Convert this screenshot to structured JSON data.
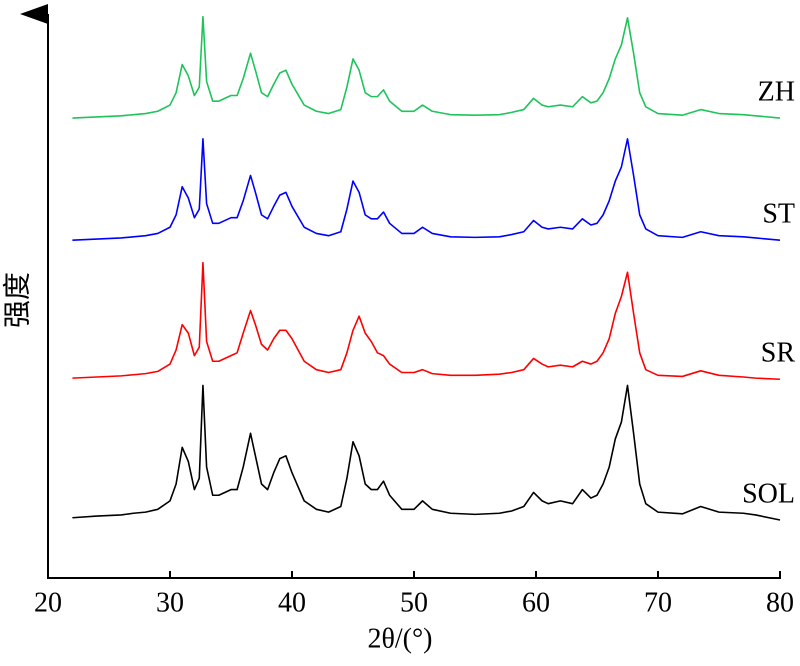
{
  "chart_data": {
    "type": "line",
    "x_label": "2θ/(°)",
    "y_label": "强度",
    "xlim": [
      20,
      80
    ],
    "xticks": [
      20,
      30,
      40,
      50,
      60,
      70,
      80
    ],
    "ylim": [
      0,
      100
    ],
    "x": [
      22,
      24,
      26,
      27,
      28,
      29,
      30,
      30.5,
      31,
      31.5,
      32,
      32.4,
      32.7,
      33,
      33.5,
      34,
      35,
      35.5,
      36,
      36.6,
      37,
      37.5,
      38,
      38.5,
      39,
      39.5,
      40,
      41,
      42,
      43,
      44,
      44.5,
      45,
      45.5,
      46,
      46.5,
      47,
      47.5,
      48,
      49,
      50,
      50.7,
      51.5,
      53,
      55,
      57,
      58,
      59,
      59.8,
      60.5,
      61,
      62,
      63,
      63.8,
      64.5,
      65,
      65.5,
      66,
      66.5,
      67,
      67.5,
      68,
      68.5,
      69,
      70,
      72,
      73.5,
      75,
      77,
      78,
      80
    ],
    "series": [
      {
        "name": "ZH",
        "color": "#1ec45a",
        "values": [
          81.7,
          81.9,
          82.1,
          82.3,
          82.5,
          82.9,
          84,
          86.2,
          91.2,
          89.2,
          85.7,
          87.2,
          99.7,
          88.2,
          84.7,
          84.7,
          85.7,
          85.7,
          88.7,
          93.2,
          90.2,
          86.2,
          85.5,
          87.7,
          89.7,
          90.2,
          87.7,
          84,
          82.9,
          82.5,
          83.2,
          87.2,
          92.2,
          90.2,
          86.2,
          85.5,
          85.5,
          86.7,
          84.7,
          82.9,
          82.9,
          84,
          82.9,
          82.3,
          82.2,
          82.3,
          82.7,
          83.2,
          85.2,
          84,
          83.7,
          84,
          83.7,
          85.5,
          84.4,
          84.7,
          86.2,
          88.7,
          92.2,
          94.7,
          99.5,
          93.2,
          86.2,
          83.7,
          82.5,
          82.2,
          83.2,
          82.5,
          82.3,
          82.1,
          81.7
        ]
      },
      {
        "name": "ST",
        "color": "#0000ff",
        "values": [
          60,
          60.2,
          60.4,
          60.6,
          60.8,
          61.2,
          62.3,
          64.5,
          69.5,
          67.5,
          64,
          65.5,
          78,
          66.5,
          63,
          63,
          64,
          64,
          67,
          71.5,
          68.5,
          64.5,
          63.8,
          66,
          68,
          68.5,
          66,
          62.3,
          61.2,
          60.8,
          61.5,
          65.5,
          70.5,
          68.5,
          64.5,
          63.8,
          63.8,
          65,
          63,
          61.2,
          61.2,
          62.3,
          61.2,
          60.6,
          60.5,
          60.6,
          61,
          61.5,
          63.5,
          62.3,
          62,
          62.3,
          62,
          63.8,
          62.7,
          63,
          64.5,
          67,
          70.5,
          73,
          78,
          71.5,
          64.5,
          62,
          60.8,
          60.5,
          61.5,
          60.8,
          60.6,
          60.4,
          60
        ]
      },
      {
        "name": "SR",
        "color": "#ff0000",
        "values": [
          35.5,
          35.7,
          35.9,
          36.1,
          36.3,
          36.7,
          38,
          40.5,
          45,
          43.5,
          39.5,
          41,
          56,
          42,
          38.5,
          38.5,
          39.5,
          40,
          43.5,
          47.5,
          45,
          41.5,
          40.5,
          42.5,
          44,
          44,
          42.5,
          38.5,
          37,
          36.5,
          37,
          40,
          44,
          46.5,
          43.5,
          42,
          40,
          39.5,
          38,
          36.5,
          36.5,
          37,
          36.3,
          36,
          36,
          36.2,
          36.5,
          37,
          39,
          38,
          37.5,
          37.8,
          37.5,
          38.5,
          38,
          38.5,
          40,
          42.5,
          47,
          50,
          54.3,
          47,
          40,
          37,
          36,
          35.8,
          36.8,
          36,
          35.7,
          35.5,
          35.3
        ]
      },
      {
        "name": "SOL",
        "color": "#000000",
        "values": [
          10.7,
          11.0,
          11.2,
          11.5,
          11.7,
          12.2,
          13.7,
          16.7,
          23.2,
          20.7,
          15.7,
          17.7,
          34.2,
          19.7,
          14.7,
          14.7,
          15.7,
          15.7,
          19.7,
          25.7,
          21.7,
          16.7,
          15.7,
          18.7,
          21.2,
          21.7,
          18.7,
          13.7,
          12.2,
          11.7,
          12.7,
          17.7,
          24.2,
          21.7,
          16.7,
          15.7,
          15.7,
          17.2,
          14.7,
          12.2,
          12.2,
          13.7,
          12.2,
          11.5,
          11.3,
          11.5,
          11.9,
          12.7,
          15.2,
          13.7,
          13.2,
          13.7,
          13.2,
          15.7,
          14.2,
          14.7,
          16.7,
          19.7,
          24.7,
          27.7,
          34.2,
          25.7,
          16.7,
          13.2,
          11.7,
          11.4,
          12.7,
          11.7,
          11.5,
          11.2,
          10.3
        ]
      }
    ]
  }
}
